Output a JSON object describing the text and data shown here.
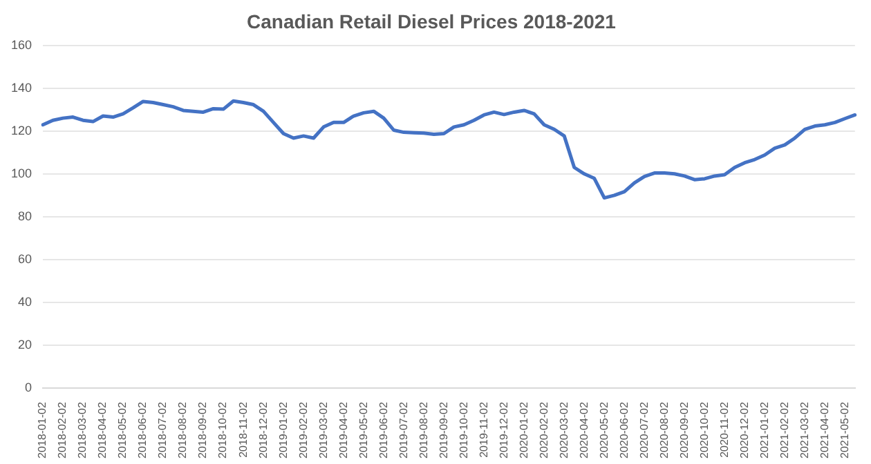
{
  "chart_data": {
    "type": "line",
    "title": "Canadian Retail Diesel Prices 2018-2021",
    "categories": [
      "2018-01-02",
      null,
      "2018-02-02",
      null,
      "2018-03-02",
      null,
      "2018-04-02",
      null,
      "2018-05-02",
      null,
      "2018-06-02",
      null,
      "2018-07-02",
      null,
      "2018-08-02",
      null,
      "2018-09-02",
      null,
      "2018-10-02",
      null,
      "2018-11-02",
      null,
      "2018-12-02",
      null,
      "2019-01-02",
      null,
      "2019-02-02",
      null,
      "2019-03-02",
      null,
      "2019-04-02",
      null,
      "2019-05-02",
      null,
      "2019-06-02",
      null,
      "2019-07-02",
      null,
      "2019-08-02",
      null,
      "2019-09-02",
      null,
      "2019-10-02",
      null,
      "2019-11-02",
      null,
      "2019-12-02",
      null,
      "2020-01-02",
      null,
      "2020-02-02",
      null,
      "2020-03-02",
      null,
      "2020-04-02",
      null,
      "2020-05-02",
      null,
      "2020-06-02",
      null,
      "2020-07-02",
      null,
      "2020-08-02",
      null,
      "2020-09-02",
      null,
      "2020-10-02",
      null,
      "2020-11-02",
      null,
      "2020-12-02",
      null,
      "2021-01-02",
      null,
      "2021-02-02",
      null,
      "2021-03-02",
      null,
      "2021-04-02",
      null,
      "2021-05-02",
      null
    ],
    "series": [
      {
        "color": "#4472c4",
        "values": [
          122.9,
          125,
          126,
          126.5,
          125,
          124.4,
          127,
          126.5,
          128,
          130.8,
          133.8,
          133.3,
          132.3,
          131.3,
          129.6,
          129.2,
          128.8,
          130.4,
          130.2,
          134,
          133.3,
          132.3,
          129.2,
          124,
          118.8,
          116.7,
          117.7,
          116.7,
          121.9,
          124,
          124,
          127,
          128.5,
          129.2,
          126,
          120.4,
          119.4,
          119.2,
          119,
          118.5,
          118.8,
          121.9,
          122.9,
          125,
          127.5,
          128.8,
          127.7,
          128.8,
          129.6,
          128,
          122.9,
          120.8,
          117.7,
          103,
          100,
          97.9,
          88.8,
          90,
          91.7,
          95.8,
          98.8,
          100.4,
          100.4,
          100,
          99,
          97.3,
          97.7,
          99,
          99.6,
          103,
          105.2,
          106.7,
          108.8,
          112,
          113.5,
          116.7,
          120.8,
          122.3,
          122.9,
          124,
          125.8,
          127.5
        ]
      }
    ],
    "ylim": [
      0,
      160
    ],
    "yticks": [
      0,
      20,
      40,
      60,
      80,
      100,
      120,
      140,
      160
    ],
    "grid": "y",
    "legend": false,
    "marker": "none",
    "line_style": "solid"
  }
}
